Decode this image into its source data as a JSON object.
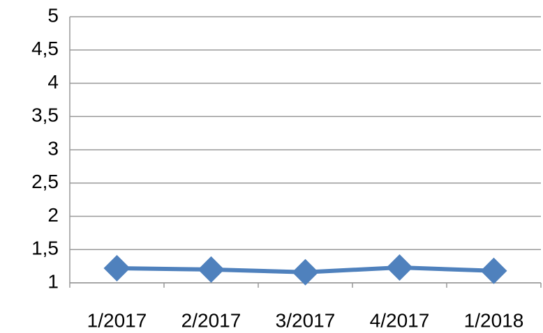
{
  "chart_data": {
    "type": "line",
    "categories": [
      "1/2017",
      "2/2017",
      "3/2017",
      "4/2017",
      "1/2018"
    ],
    "values": [
      1.22,
      1.2,
      1.16,
      1.23,
      1.18
    ],
    "color": "#4f81bd",
    "ylim": [
      1,
      5
    ],
    "yticks": [
      1,
      {
        "value": 1.5,
        "label": "1,5"
      },
      2,
      {
        "value": 2.5,
        "label": "2,5"
      },
      3,
      {
        "value": 3.5,
        "label": "3,5"
      },
      4,
      {
        "value": 4.5,
        "label": "4,5"
      },
      5
    ],
    "grid": true
  }
}
